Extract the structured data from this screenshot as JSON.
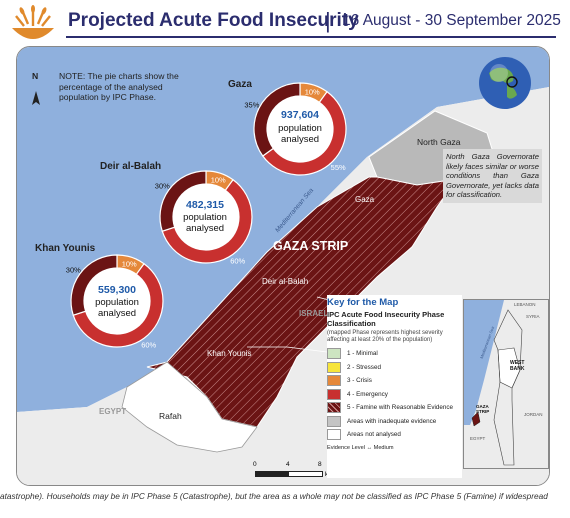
{
  "header": {
    "title": "Projected Acute Food Insecurity",
    "separator": "|",
    "date_range": "16 August - 30 September 2025",
    "logo_icon": "wheat-bowl-icon"
  },
  "map": {
    "note": "NOTE: The pie charts show the percentage of the analysed population by IPC Phase.",
    "north_arrow": "N",
    "region_title": "GAZA STRIP",
    "labels": {
      "north_gaza": "North Gaza",
      "gaza": "Gaza",
      "deir_al_balah": "Deir al-Balah",
      "khan_younis": "Khan Younis",
      "rafah": "Rafah",
      "israel": "ISRAEL",
      "egypt": "EGYPT",
      "sea": "Mediterranean Sea"
    },
    "north_gaza_callout": "North Gaza Governorate likely faces similar or worse conditions than Gaza Governorate, yet lacks data for classification.",
    "scale": {
      "ticks": [
        "0",
        "4",
        "8"
      ],
      "unit": "km"
    }
  },
  "pies": [
    {
      "id": "gaza",
      "name": "Gaza",
      "population": "937,604",
      "label": "population analysed",
      "slices": [
        {
          "phase": 3,
          "percent": 10,
          "label": "10%"
        },
        {
          "phase": 4,
          "percent": 55,
          "label": "55%"
        },
        {
          "phase": 5,
          "percent": 35,
          "label": "35%"
        }
      ]
    },
    {
      "id": "deir",
      "name": "Deir al-Balah",
      "population": "482,315",
      "label": "population analysed",
      "slices": [
        {
          "phase": 3,
          "percent": 10,
          "label": "10%"
        },
        {
          "phase": 4,
          "percent": 60,
          "label": "60%"
        },
        {
          "phase": 5,
          "percent": 30,
          "label": "30%"
        }
      ]
    },
    {
      "id": "khan",
      "name": "Khan Younis",
      "population": "559,300",
      "label": "population analysed",
      "slices": [
        {
          "phase": 3,
          "percent": 10,
          "label": "10%"
        },
        {
          "phase": 4,
          "percent": 60,
          "label": "60%"
        },
        {
          "phase": 5,
          "percent": 30,
          "label": "30%"
        }
      ]
    }
  ],
  "legend": {
    "title": "Key for the Map",
    "subtitle": "IPC Acute Food Insecurity Phase Classification",
    "note": "(mapped Phase represents highest severity affecting at least 20% of the population)",
    "items": [
      {
        "label": "1 - Minimal",
        "color": "#cde5c1"
      },
      {
        "label": "2 - Stressed",
        "color": "#f7e53b"
      },
      {
        "label": "3 - Crisis",
        "color": "#e5883a"
      },
      {
        "label": "4 - Emergency",
        "color": "#c8302f"
      },
      {
        "label": "5 - Famine with Reasonable Evidence",
        "color": "#6b1414"
      },
      {
        "label": "Areas with inadequate evidence",
        "color": "#c4c4c4"
      },
      {
        "label": "Areas not analysed",
        "color": "#ffffff"
      }
    ],
    "evidence_label": "Evidence Level",
    "evidence_value": "↔ Medium"
  },
  "inset": {
    "west_bank": "WEST BANK",
    "gaza_strip": "GAZA STRIP",
    "jordan": "JORDAN",
    "egypt": "EGYPT",
    "lebanon": "LEBANON",
    "syria": "SYRIA",
    "sea": "Mediterranean Sea"
  },
  "footer_text": "atastrophe). Households may be in IPC Phase 5 (Catastrophe), but the area as a whole may not be classified as IPC Phase 5 (Famine) if widespread",
  "colors": {
    "sea": "#8fb0dd",
    "land": "#ececec",
    "famine": "#6b1414",
    "emergency": "#c8302f",
    "crisis": "#e5883a",
    "title": "#2b2d6e"
  }
}
